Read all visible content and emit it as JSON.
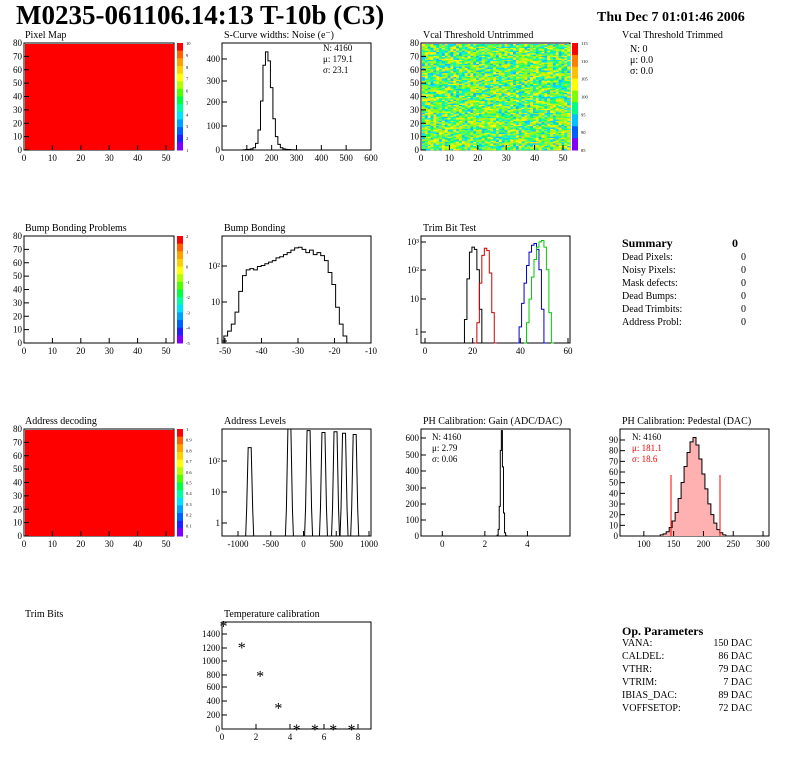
{
  "header": {
    "title": "M0235-061106.14:13 T-10b (C3)",
    "date": "Thu Dec  7 01:01:46 2006"
  },
  "panels": {
    "pixel_map": {
      "title": "Pixel Map",
      "x_ticks": [
        "0",
        "10",
        "20",
        "30",
        "40",
        "50"
      ],
      "y_ticks": [
        "0",
        "10",
        "20",
        "30",
        "40",
        "50",
        "60",
        "70",
        "80"
      ],
      "palette_ticks": [
        "10",
        "9",
        "8",
        "7",
        "6",
        "5",
        "4",
        "3",
        "2",
        "1"
      ],
      "fill_color": "#ff0000"
    },
    "scurve": {
      "title": "S-Curve widths: Noise (e⁻)",
      "stats": {
        "n": "N: 4160",
        "mu": "μ: 179.1",
        "sigma": "σ: 23.1"
      },
      "x_ticks": [
        "0",
        "100",
        "200",
        "300",
        "400",
        "500",
        "600"
      ],
      "y_ticks": [
        "0",
        "100",
        "200",
        "300",
        "400"
      ]
    },
    "vcal_untrimmed": {
      "title": "Vcal Threshold Untrimmed",
      "x_ticks": [
        "0",
        "10",
        "20",
        "30",
        "40",
        "50"
      ],
      "y_ticks": [
        "0",
        "10",
        "20",
        "30",
        "40",
        "50",
        "60",
        "70",
        "80"
      ],
      "palette_ticks": [
        "115",
        "110",
        "105",
        "100",
        "95",
        "90",
        "85"
      ]
    },
    "vcal_trimmed": {
      "title": "Vcal Threshold Trimmed",
      "stats": {
        "n": "N:    0",
        "mu": "μ:  0.0",
        "sigma": "σ:  0.0"
      }
    },
    "bump_problems": {
      "title": "Bump Bonding Problems",
      "x_ticks": [
        "0",
        "10",
        "20",
        "30",
        "40",
        "50"
      ],
      "y_ticks": [
        "0",
        "10",
        "20",
        "30",
        "40",
        "50",
        "60",
        "70",
        "80"
      ],
      "palette_ticks": [
        "2",
        "1",
        "0",
        "-1",
        "-2",
        "-3",
        "-4",
        "-5"
      ]
    },
    "bump_bonding": {
      "title": "Bump Bonding",
      "x_ticks": [
        "-50",
        "-40",
        "-30",
        "-20",
        "-10"
      ],
      "y_ticks": [
        "1",
        "10",
        "10²"
      ]
    },
    "trim_bit_test": {
      "title": "Trim Bit Test",
      "x_ticks": [
        "0",
        "20",
        "40",
        "60"
      ],
      "y_ticks": [
        "1",
        "10",
        "10²",
        "10³"
      ]
    },
    "summary": {
      "title": "Summary",
      "total": "0",
      "rows": [
        {
          "label": "Dead Pixels:",
          "value": "0"
        },
        {
          "label": "Noisy Pixels:",
          "value": "0"
        },
        {
          "label": "Mask defects:",
          "value": "0"
        },
        {
          "label": "Dead Bumps:",
          "value": "0"
        },
        {
          "label": "Dead Trimbits:",
          "value": "0"
        },
        {
          "label": "Address Probl:",
          "value": "0"
        }
      ]
    },
    "address_decoding": {
      "title": "Address decoding",
      "x_ticks": [
        "0",
        "10",
        "20",
        "30",
        "40",
        "50"
      ],
      "y_ticks": [
        "0",
        "10",
        "20",
        "30",
        "40",
        "50",
        "60",
        "70",
        "80"
      ],
      "palette_ticks": [
        "1",
        "0.9",
        "0.8",
        "0.7",
        "0.6",
        "0.5",
        "0.4",
        "0.3",
        "0.2",
        "0.1",
        "0"
      ],
      "fill_color": "#ff0000"
    },
    "address_levels": {
      "title": "Address Levels",
      "x_ticks": [
        "-1000",
        "-500",
        "0",
        "500",
        "1000"
      ],
      "y_ticks": [
        "1",
        "10",
        "10²"
      ]
    },
    "ph_gain": {
      "title": "PH Calibration: Gain (ADC/DAC)",
      "stats": {
        "n": "N: 4160",
        "mu": "μ: 2.79",
        "sigma": "σ: 0.06"
      },
      "x_ticks": [
        "0",
        "2",
        "4"
      ],
      "y_ticks": [
        "0",
        "100",
        "200",
        "300",
        "400",
        "500",
        "600"
      ]
    },
    "ph_pedestal": {
      "title": "PH Calibration: Pedestal (DAC)",
      "stats": {
        "n": "N: 4160",
        "mu": "μ: 181.1",
        "sigma": "σ: 18.6"
      },
      "x_ticks": [
        "100",
        "150",
        "200",
        "250",
        "300"
      ],
      "y_ticks": [
        "0",
        "10",
        "20",
        "30",
        "40",
        "50",
        "60",
        "70",
        "80",
        "90"
      ],
      "accent": "#ff0000"
    },
    "trim_bits": {
      "title": "Trim Bits"
    },
    "temperature": {
      "title": "Temperature calibration",
      "x_ticks": [
        "0",
        "2",
        "4",
        "6",
        "8"
      ],
      "y_ticks": [
        "0",
        "200",
        "400",
        "600",
        "800",
        "1000",
        "1200",
        "1400"
      ]
    },
    "op_params": {
      "title": "Op. Parameters",
      "rows": [
        {
          "label": "VANA:",
          "value": "150 DAC"
        },
        {
          "label": "CALDEL:",
          "value": "86 DAC"
        },
        {
          "label": "VTHR:",
          "value": "79 DAC"
        },
        {
          "label": "VTRIM:",
          "value": "7 DAC"
        },
        {
          "label": "IBIAS_DAC:",
          "value": "89 DAC"
        },
        {
          "label": "VOFFSETOP:",
          "value": "72 DAC"
        }
      ]
    }
  },
  "chart_data": [
    {
      "type": "heatmap",
      "title": "Pixel Map",
      "xlim": [
        0,
        52
      ],
      "ylim": [
        0,
        80
      ],
      "zlim": [
        0,
        10
      ],
      "values": "uniform 10"
    },
    {
      "type": "bar",
      "title": "S-Curve widths: Noise (e⁻)",
      "xlim": [
        0,
        600
      ],
      "ylim": [
        0,
        480
      ],
      "x": [
        80,
        90,
        100,
        110,
        120,
        130,
        140,
        150,
        160,
        170,
        180,
        190,
        200,
        210,
        220,
        230,
        240,
        250,
        260,
        270,
        280,
        290,
        300
      ],
      "values": [
        0,
        1,
        2,
        3,
        5,
        10,
        30,
        90,
        220,
        380,
        440,
        400,
        280,
        140,
        60,
        25,
        10,
        5,
        3,
        2,
        1,
        1,
        0
      ]
    },
    {
      "type": "heatmap",
      "title": "Vcal Threshold Untrimmed",
      "xlim": [
        0,
        52
      ],
      "ylim": [
        0,
        80
      ],
      "zlim": [
        82,
        118
      ]
    },
    {
      "type": "heatmap",
      "title": "Bump Bonding Problems",
      "xlim": [
        0,
        52
      ],
      "ylim": [
        0,
        80
      ],
      "zlim": [
        -5,
        2
      ]
    },
    {
      "type": "bar",
      "title": "Bump Bonding",
      "log_y": true,
      "xlim": [
        -50,
        -10
      ],
      "ylim": [
        1,
        500
      ],
      "x": [
        -49,
        -48,
        -47,
        -46,
        -45,
        -44,
        -43,
        -42,
        -41,
        -40,
        -39,
        -38,
        -37,
        -36,
        -35,
        -34,
        -33,
        -32,
        -31,
        -30,
        -29,
        -28,
        -27,
        -26,
        -25,
        -24,
        -23,
        -22,
        -21,
        -20,
        -19,
        -18,
        -17,
        -16
      ],
      "values": [
        1.5,
        2,
        3,
        6,
        20,
        50,
        70,
        75,
        70,
        85,
        90,
        100,
        110,
        120,
        140,
        150,
        170,
        190,
        220,
        250,
        260,
        230,
        190,
        220,
        170,
        190,
        160,
        120,
        60,
        30,
        8,
        3,
        1.5,
        1
      ]
    },
    {
      "type": "line",
      "title": "Trim Bit Test",
      "log_y": true,
      "xlim": [
        0,
        60
      ],
      "ylim": [
        1,
        1500
      ],
      "series": [
        {
          "color": "#000000",
          "x": [
            17,
            18,
            19,
            20,
            21,
            22,
            23,
            24,
            25
          ],
          "values": [
            1,
            5,
            80,
            500,
            700,
            600,
            150,
            10,
            1
          ]
        },
        {
          "color": "#cc0000",
          "x": [
            22,
            23,
            24,
            25,
            26,
            27,
            28,
            29,
            30
          ],
          "values": [
            1,
            4,
            60,
            400,
            650,
            550,
            120,
            8,
            1
          ]
        },
        {
          "color": "#0000cc",
          "x": [
            39,
            40,
            41,
            42,
            43,
            44,
            45,
            46,
            47,
            48,
            49,
            50
          ],
          "values": [
            1,
            3,
            15,
            60,
            200,
            500,
            800,
            900,
            600,
            150,
            10,
            1
          ]
        },
        {
          "color": "#00cc00",
          "x": [
            42,
            43,
            44,
            45,
            46,
            47,
            48,
            49,
            50,
            51,
            52,
            53
          ],
          "values": [
            1,
            4,
            20,
            90,
            300,
            700,
            1000,
            1100,
            700,
            150,
            8,
            1
          ]
        }
      ]
    },
    {
      "type": "heatmap",
      "title": "Address decoding",
      "xlim": [
        0,
        52
      ],
      "ylim": [
        0,
        80
      ],
      "zlim": [
        0,
        1
      ],
      "values": "uniform 1"
    },
    {
      "type": "bar",
      "title": "Address Levels",
      "log_y": true,
      "xlim": [
        -1100,
        1000
      ],
      "ylim": [
        0.5,
        500
      ],
      "peaks": [
        {
          "x": -710,
          "h": 150
        },
        {
          "x": -150,
          "h": 500
        },
        {
          "x": 120,
          "h": 450
        },
        {
          "x": 330,
          "h": 400
        },
        {
          "x": 500,
          "h": 420
        },
        {
          "x": 620,
          "h": 380
        },
        {
          "x": 770,
          "h": 350
        }
      ]
    },
    {
      "type": "bar",
      "title": "PH Calibration: Gain (ADC/DAC)",
      "xlim": [
        -1,
        6
      ],
      "ylim": [
        0,
        650
      ],
      "x": [
        2.6,
        2.65,
        2.7,
        2.75,
        2.8,
        2.85,
        2.9,
        2.95,
        3.0
      ],
      "values": [
        5,
        40,
        180,
        520,
        640,
        420,
        140,
        20,
        2
      ]
    },
    {
      "type": "bar",
      "title": "PH Calibration: Pedestal (DAC)",
      "xlim": [
        60,
        310
      ],
      "ylim": [
        0,
        100
      ],
      "x": [
        130,
        135,
        140,
        145,
        150,
        155,
        160,
        165,
        170,
        175,
        180,
        185,
        190,
        195,
        200,
        205,
        210,
        215,
        220,
        225,
        230,
        235
      ],
      "values": [
        1,
        2,
        4,
        8,
        14,
        22,
        35,
        50,
        65,
        78,
        88,
        92,
        85,
        72,
        58,
        44,
        30,
        20,
        12,
        6,
        3,
        1
      ]
    },
    {
      "type": "scatter",
      "title": "Temperature calibration",
      "xlim": [
        0,
        8
      ],
      "ylim": [
        0,
        1500
      ],
      "x": [
        0,
        1,
        2,
        3,
        4,
        5,
        6,
        7
      ],
      "values": [
        1450,
        1150,
        750,
        300,
        0,
        0,
        0,
        0
      ]
    }
  ]
}
